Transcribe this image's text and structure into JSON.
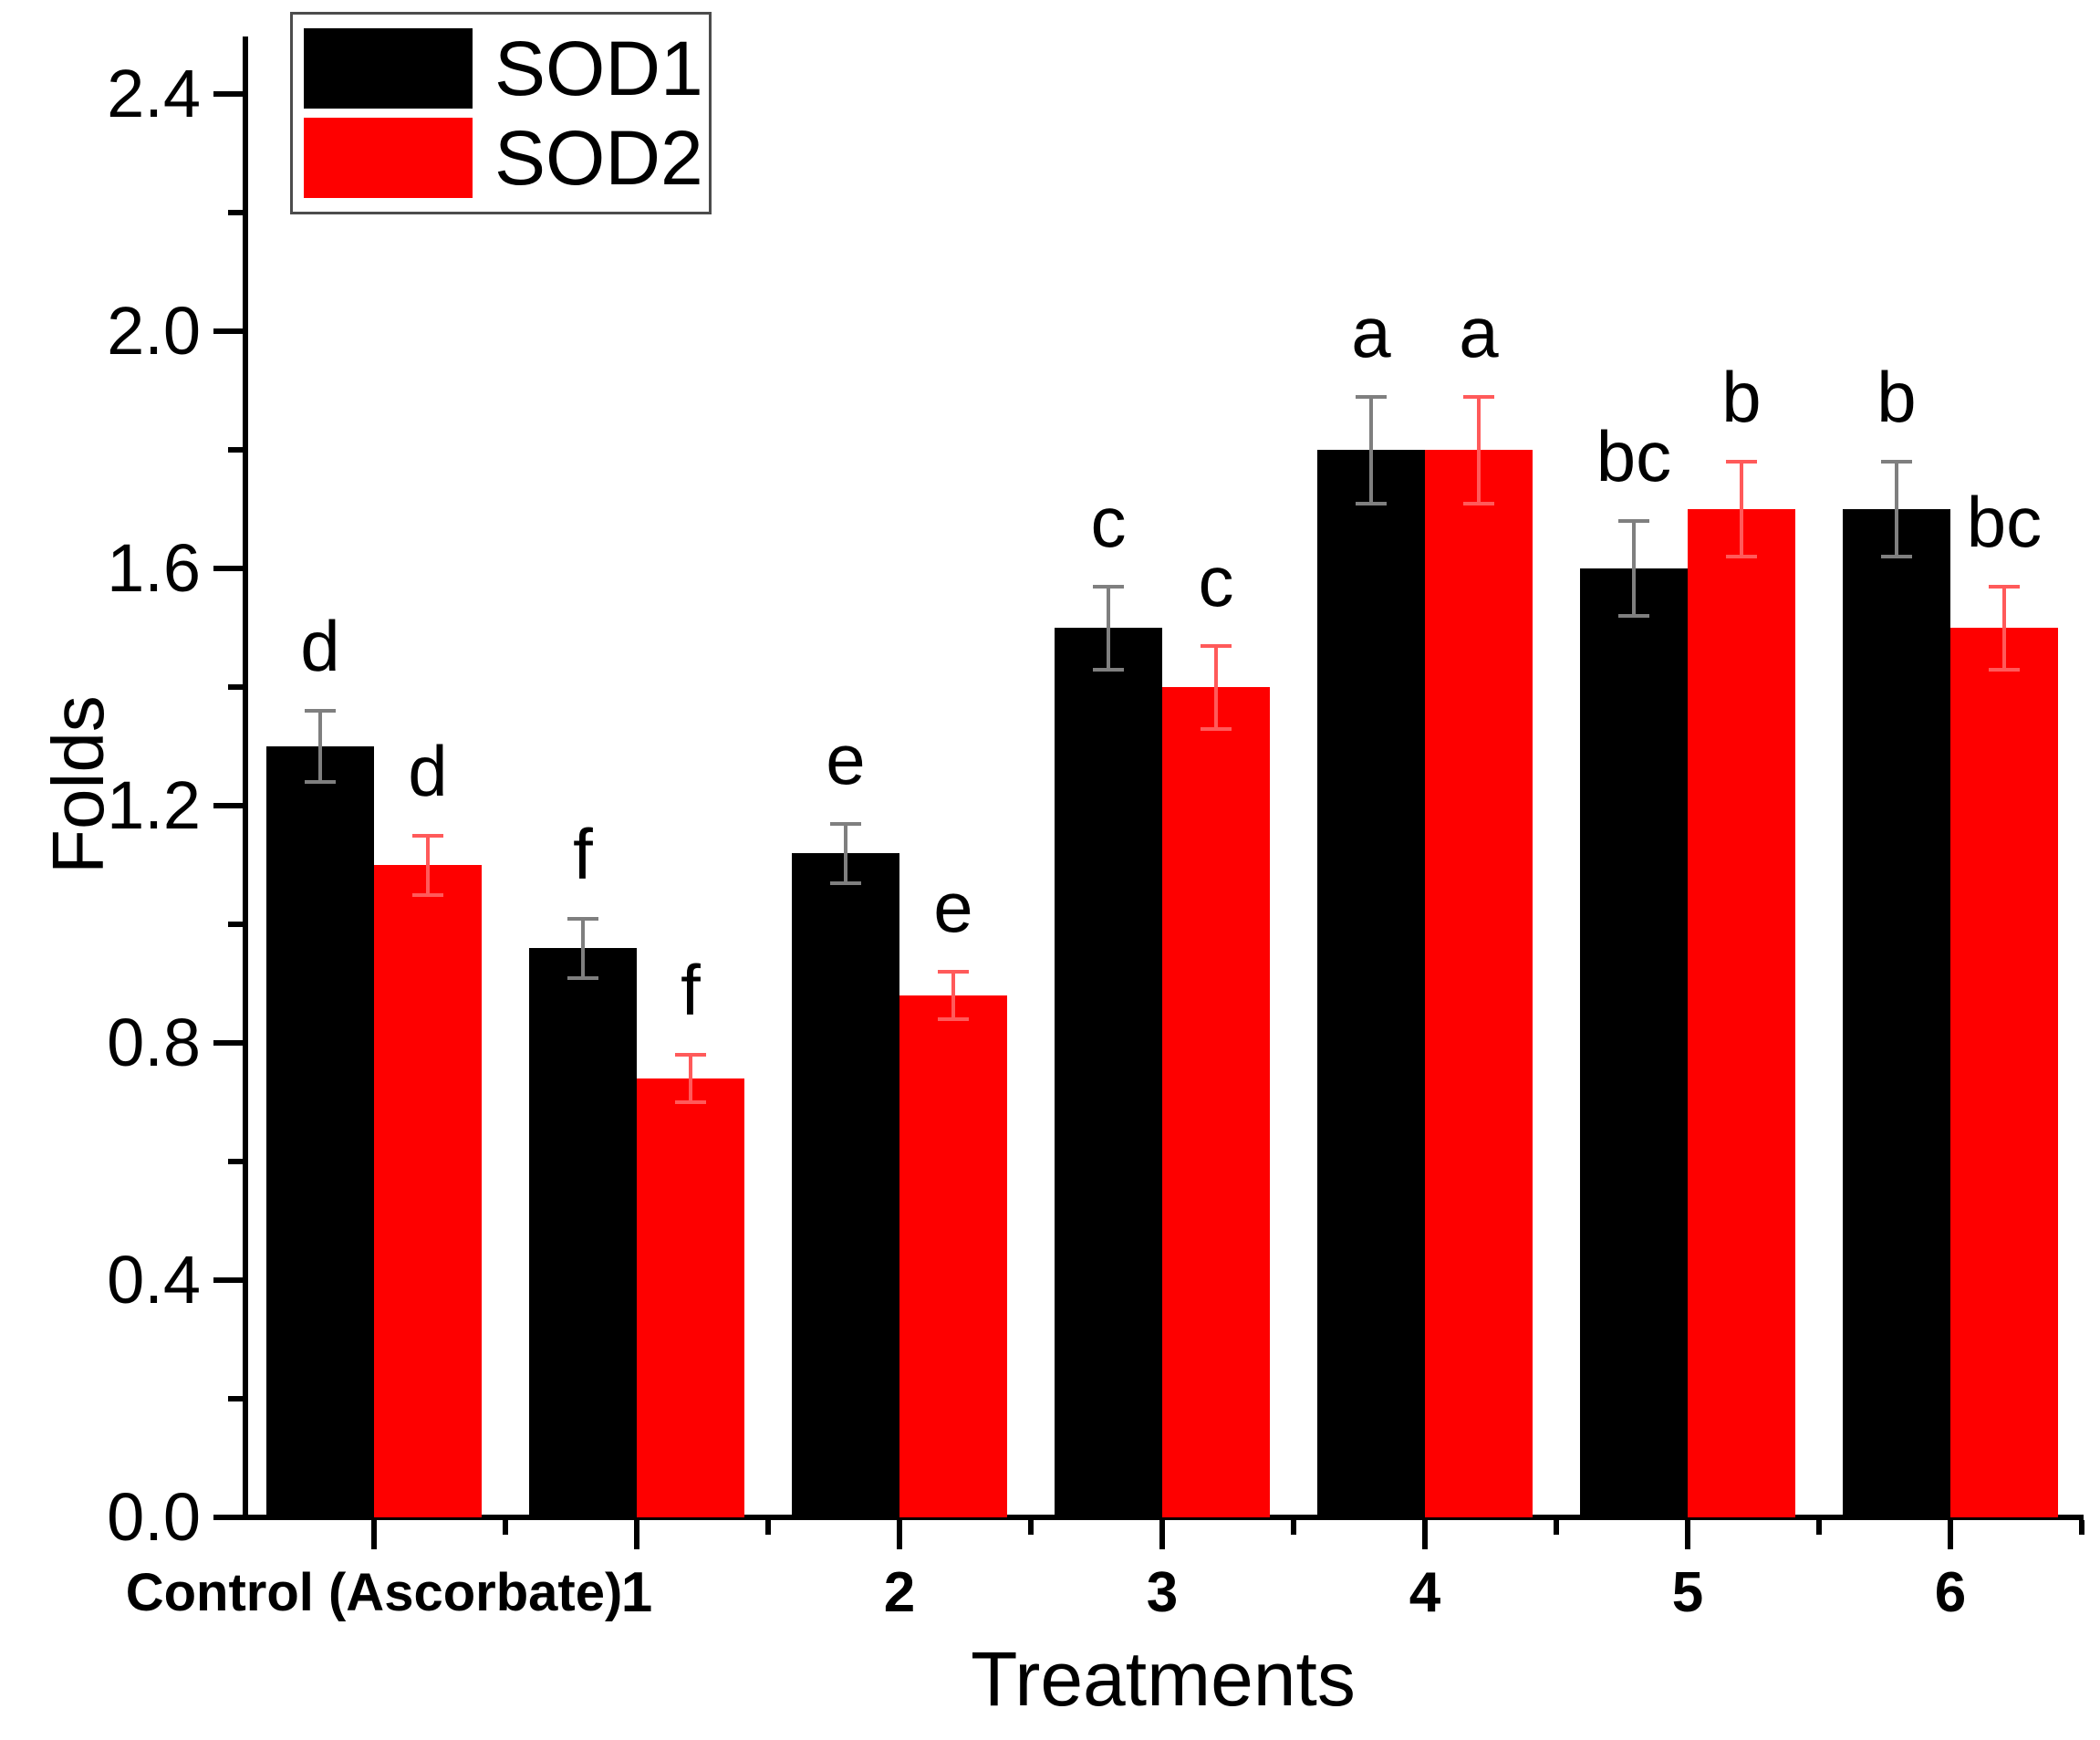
{
  "chart_data": {
    "type": "bar",
    "title": "",
    "xlabel": "Treatments",
    "ylabel": "Folds",
    "ylim": [
      0.0,
      2.5
    ],
    "ytick_labels": [
      "0.0",
      "0.4",
      "0.8",
      "1.2",
      "1.6",
      "2.0",
      "2.4"
    ],
    "ytick_minor_values": [
      0.2,
      0.6,
      1.0,
      1.4,
      1.8,
      2.2
    ],
    "grid": false,
    "legend_position": "top-left",
    "categories": [
      "Control (Ascorbate)",
      "1",
      "2",
      "3",
      "4",
      "5",
      "6"
    ],
    "series": [
      {
        "name": "SOD1",
        "color": "#000000",
        "error_bar_color": "#7f7f7f",
        "values": [
          1.3,
          0.96,
          1.12,
          1.5,
          1.8,
          1.6,
          1.7
        ],
        "errors": [
          0.06,
          0.05,
          0.05,
          0.07,
          0.09,
          0.08,
          0.08
        ],
        "sig_letters": [
          "d",
          "f",
          "e",
          "c",
          "a",
          "bc",
          "b"
        ]
      },
      {
        "name": "SOD2",
        "color": "#fe0000",
        "error_bar_color": "#ff5a5a",
        "values": [
          1.1,
          0.74,
          0.88,
          1.4,
          1.8,
          1.7,
          1.5
        ],
        "errors": [
          0.05,
          0.04,
          0.04,
          0.07,
          0.09,
          0.08,
          0.07
        ],
        "sig_letters": [
          "d",
          "f",
          "e",
          "c",
          "a",
          "b",
          "bc"
        ]
      }
    ]
  }
}
